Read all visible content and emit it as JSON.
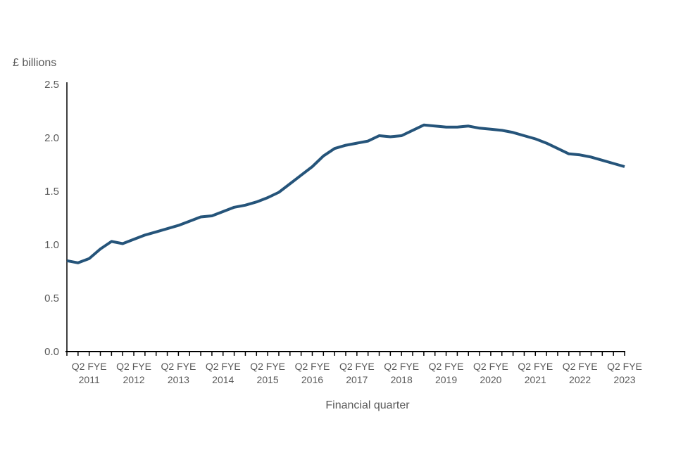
{
  "chart_data": {
    "type": "line",
    "title": "",
    "ylabel": "£ billions",
    "xlabel": "Financial quarter",
    "ylim": [
      0,
      2.5
    ],
    "yticks": [
      0.0,
      0.5,
      1.0,
      1.5,
      2.0,
      2.5
    ],
    "ytick_decimals": 1,
    "grid": false,
    "legend_position": "none",
    "x_label_start_index": 2,
    "x_label_step": 4,
    "x_labels": [
      {
        "top": "Q2 FYE",
        "bottom": "2011"
      },
      {
        "top": "Q2 FYE",
        "bottom": "2012"
      },
      {
        "top": "Q2 FYE",
        "bottom": "2013"
      },
      {
        "top": "Q2 FYE",
        "bottom": "2014"
      },
      {
        "top": "Q2 FYE",
        "bottom": "2015"
      },
      {
        "top": "Q2 FYE",
        "bottom": "2016"
      },
      {
        "top": "Q2 FYE",
        "bottom": "2017"
      },
      {
        "top": "Q2 FYE",
        "bottom": "2018"
      },
      {
        "top": "Q2 FYE",
        "bottom": "2019"
      },
      {
        "top": "Q2 FYE",
        "bottom": "2020"
      },
      {
        "top": "Q2 FYE",
        "bottom": "2021"
      },
      {
        "top": "Q2 FYE",
        "bottom": "2022"
      },
      {
        "top": "Q2 FYE",
        "bottom": "2023"
      }
    ],
    "series": [
      {
        "name": "£ billions",
        "color": "#25547a",
        "values": [
          0.85,
          0.83,
          0.87,
          0.96,
          1.03,
          1.01,
          1.05,
          1.09,
          1.12,
          1.15,
          1.18,
          1.22,
          1.26,
          1.27,
          1.31,
          1.35,
          1.37,
          1.4,
          1.44,
          1.49,
          1.57,
          1.65,
          1.73,
          1.83,
          1.9,
          1.93,
          1.95,
          1.97,
          2.02,
          2.01,
          2.02,
          2.07,
          2.12,
          2.11,
          2.1,
          2.1,
          2.11,
          2.09,
          2.08,
          2.07,
          2.05,
          2.02,
          1.99,
          1.95,
          1.9,
          1.85,
          1.84,
          1.82,
          1.79,
          1.76,
          1.73
        ]
      }
    ],
    "axis_color": "#000000",
    "text_color": "#595959"
  }
}
